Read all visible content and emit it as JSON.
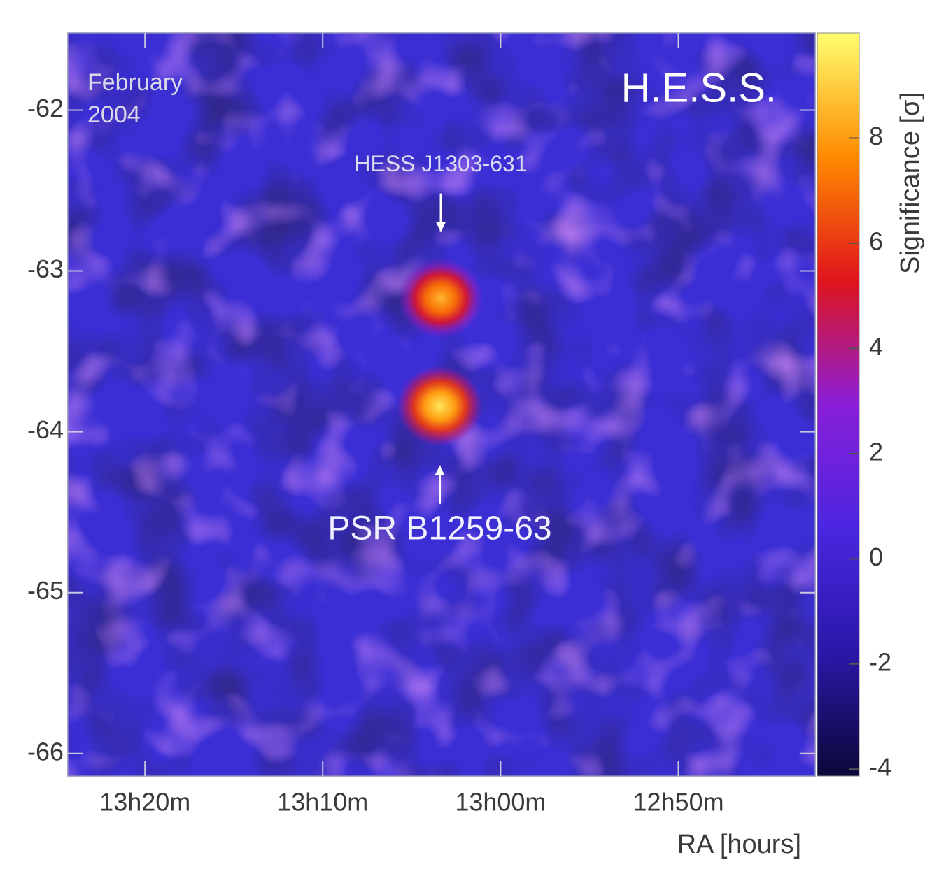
{
  "chart_data": {
    "type": "skymap",
    "annotations": [
      "February",
      "2004"
    ],
    "telescope": "H.E.S.S.",
    "xlabel": "RA [hours]",
    "colorbar_label": "Significance [σ]",
    "xlim": [
      13.4056,
      12.7051
    ],
    "xticks": [
      {
        "value": 13.3333,
        "label": "13h20m"
      },
      {
        "value": 13.1667,
        "label": "13h10m"
      },
      {
        "value": 13.0,
        "label": "13h00m"
      },
      {
        "value": 12.8333,
        "label": "12h50m"
      }
    ],
    "ylim": [
      -61.52,
      -66.14
    ],
    "yticks": [
      -62,
      -63,
      -64,
      -65,
      -66
    ],
    "clim": [
      -4.13,
      10
    ],
    "cticks": [
      -4,
      -2,
      0,
      2,
      4,
      6,
      8
    ],
    "colormap": [
      "#0b0838",
      "#2a18a8",
      "#4a26e0",
      "#8a1ed8",
      "#e0141c",
      "#ff8a00",
      "#ffff70"
    ],
    "sources": [
      {
        "name": "HESS J1303-631",
        "ra": 13.056,
        "dec": -63.17,
        "significance": 8.5
      },
      {
        "name": "PSR B1259-63",
        "ra": 13.057,
        "dec": -63.84,
        "significance": 9.5
      }
    ]
  }
}
